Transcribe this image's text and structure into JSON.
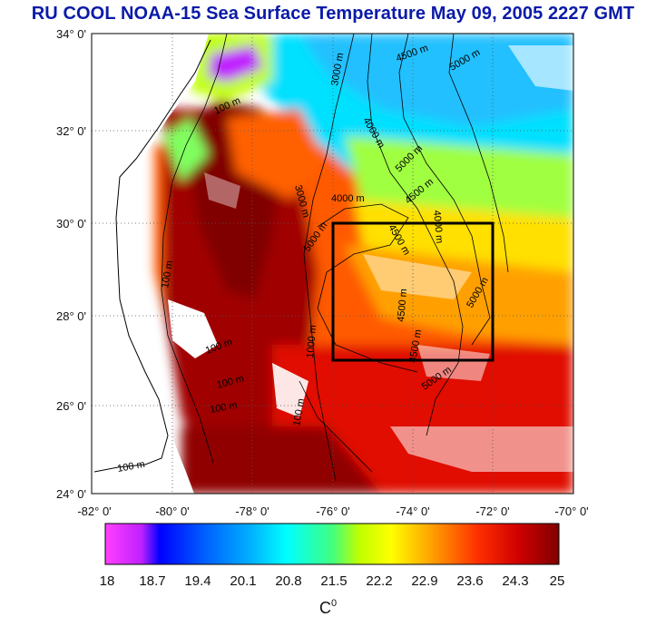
{
  "title": "RU COOL  NOAA-15 Sea Surface Temperature May 09, 2005 2227 GMT",
  "map": {
    "lat_ticks": [
      "34° 0'",
      "32° 0'",
      "30° 0'",
      "28° 0'",
      "26° 0'",
      "24° 0'"
    ],
    "lon_ticks": [
      "-82° 0'",
      "-80° 0'",
      "-78° 0'",
      "-76° 0'",
      "-74° 0'",
      "-72° 0'",
      "-70° 0'"
    ],
    "lat_range": [
      24,
      34
    ],
    "lon_range": [
      -82,
      -70
    ],
    "study_box": {
      "lon_min": -76,
      "lon_max": -72,
      "lat_min": 27,
      "lat_max": 30
    },
    "contour_labels": [
      "100 m",
      "3000 m",
      "4500 m",
      "5000 m",
      "4000 m",
      "5000 m",
      "3000 m",
      "4000 m",
      "4500 m",
      "5000 m",
      "4500 m",
      "4000 m",
      "5000 m",
      "4500 m",
      "100 m",
      "100 m",
      "100 m",
      "100 m",
      "4500 m",
      "5000 m",
      "100 m",
      "1000 m",
      "100 m"
    ]
  },
  "colorbar": {
    "tick_labels": [
      "18",
      "18.7",
      "19.4",
      "20.1",
      "20.8",
      "21.5",
      "22.2",
      "22.9",
      "23.6",
      "24.3",
      "25"
    ],
    "unit_label": "C",
    "unit_superscript": "0",
    "colors": [
      "#ff40ff",
      "#c020ff",
      "#0000ff",
      "#0060ff",
      "#00b0ff",
      "#00ffff",
      "#40ff80",
      "#c0ff00",
      "#ffff00",
      "#ffa000",
      "#ff3000",
      "#d00000",
      "#800000"
    ]
  }
}
